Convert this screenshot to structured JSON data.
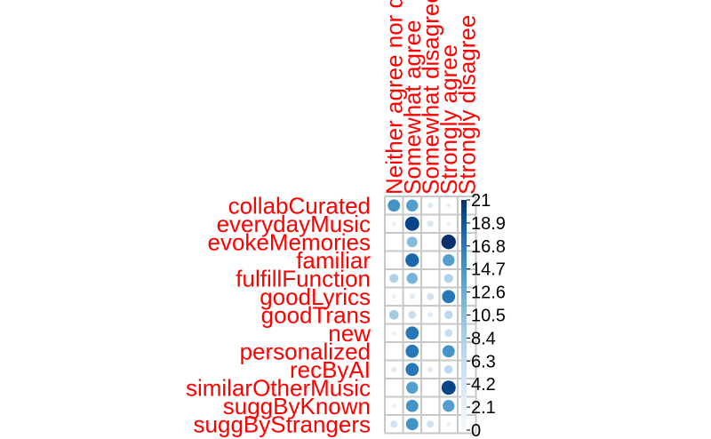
{
  "chart_data": {
    "type": "heatmap",
    "title": "",
    "rows": [
      "collabCurated",
      "everydayMusic",
      "evokeMemories",
      "familiar",
      "fulfillFunction",
      "goodLyrics",
      "goodTrans",
      "new",
      "personalized",
      "recByAI",
      "similarOtherMusic",
      "suggByKnown",
      "suggByStrangers"
    ],
    "columns": [
      "Neither agree nor disagree",
      "Somewhat agree",
      "Somewhat disagree",
      "Strongly agree",
      "Strongly disagree"
    ],
    "values": [
      [
        15,
        14,
        3,
        2,
        2
      ],
      [
        2,
        20,
        4,
        2,
        0
      ],
      [
        0,
        11,
        0,
        21,
        0
      ],
      [
        0,
        18,
        0,
        14,
        0
      ],
      [
        8,
        12,
        0,
        8,
        0
      ],
      [
        2,
        3,
        5,
        17,
        0
      ],
      [
        9,
        6,
        3,
        7,
        0
      ],
      [
        2,
        17,
        0,
        6,
        0
      ],
      [
        0,
        17,
        0,
        15,
        0
      ],
      [
        3,
        17,
        3,
        7,
        0
      ],
      [
        0,
        14,
        0,
        20,
        0
      ],
      [
        2,
        15,
        0,
        14,
        0
      ],
      [
        5,
        15,
        5,
        2,
        0
      ]
    ],
    "colorbar": {
      "min": 0,
      "max": 21,
      "tick_labels": [
        "21",
        "18.9",
        "16.8",
        "14.7",
        "12.6",
        "10.5",
        "8.4",
        "6.3",
        "4.2",
        "2.1",
        "0"
      ]
    },
    "label_color": "#ff0000",
    "color_low": "#f7fbff",
    "color_high": "#08306b"
  }
}
